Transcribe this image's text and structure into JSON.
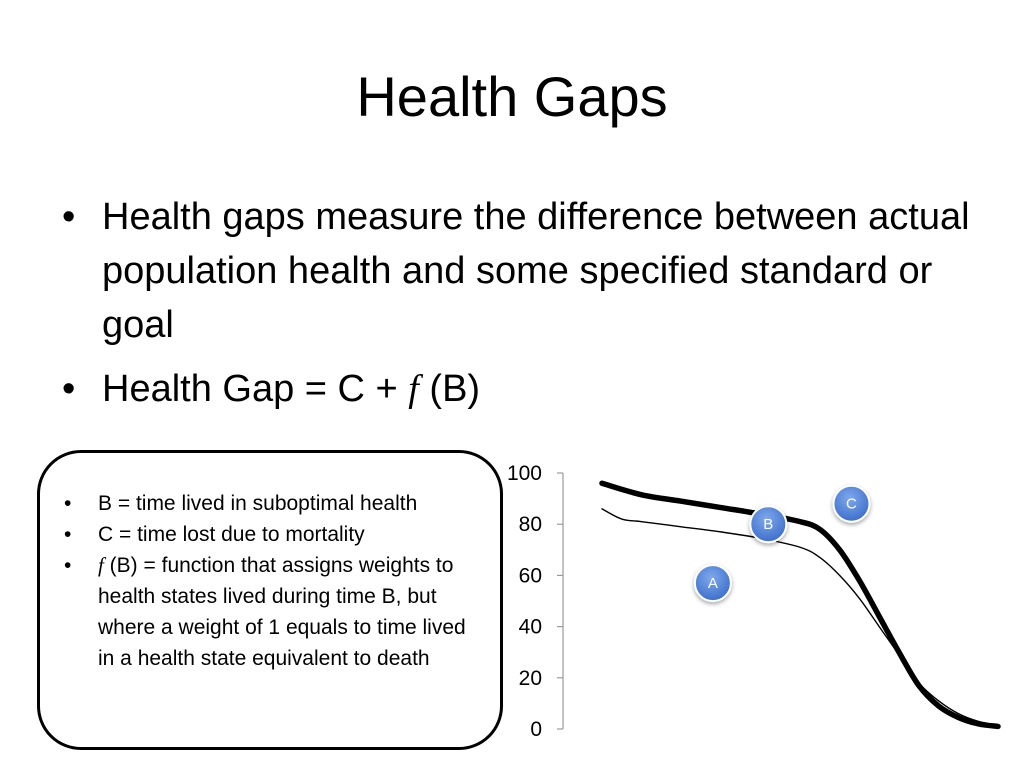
{
  "title": "Health Gaps",
  "bullets": [
    {
      "text": "Health gaps measure the difference between actual population health and some specified standard or goal"
    },
    {
      "prefix": "Health Gap = C + ",
      "f_symbol": "f",
      "suffix": " (B)"
    }
  ],
  "notes": [
    {
      "text": "B = time lived in suboptimal health"
    },
    {
      "text": "C = time lost due to mortality"
    },
    {
      "f_symbol": "f",
      "text": " (B) = function that assigns weights to health states lived during time B, but where a weight of 1 equals to time lived in a health state equivalent to death"
    }
  ],
  "chart_data": {
    "type": "line",
    "ylim": [
      0,
      100
    ],
    "y_ticks": [
      "0",
      "20",
      "40",
      "60",
      "80",
      "100"
    ],
    "x_range": [
      0,
      100
    ],
    "series": [
      {
        "style": "thick",
        "x": [
          0,
          10,
          20,
          30,
          40,
          50,
          55,
          60,
          65,
          70,
          75,
          80,
          85,
          90,
          95,
          100
        ],
        "y": [
          96,
          91.5,
          89,
          86.5,
          84,
          81,
          78,
          70,
          58,
          44,
          30,
          17,
          9,
          4.5,
          2,
          1
        ]
      },
      {
        "style": "thin",
        "x": [
          0,
          5,
          10,
          20,
          30,
          40,
          50,
          55,
          60,
          65,
          70,
          75,
          80,
          85,
          90,
          95,
          100
        ],
        "y": [
          86,
          82,
          81,
          79,
          77,
          74.5,
          71,
          67,
          60,
          51,
          40,
          29,
          18,
          11,
          6,
          3,
          1.5
        ]
      }
    ],
    "markers": [
      {
        "label": "A",
        "x": 28,
        "y": 57
      },
      {
        "label": "B",
        "x": 42,
        "y": 80
      },
      {
        "label": "C",
        "x": 63,
        "y": 88
      }
    ],
    "marker_color": "#4a7fd6",
    "curve_color": "#000000",
    "grid": false
  }
}
